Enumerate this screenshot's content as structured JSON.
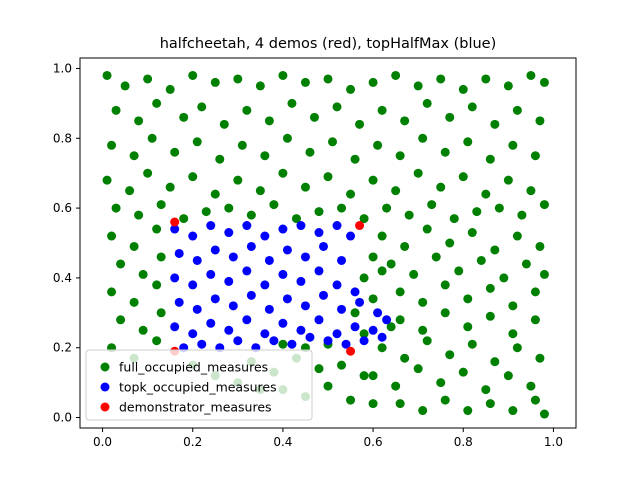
{
  "chart_data": {
    "type": "scatter",
    "title": "halfcheetah, 4 demos (red), topHalfMax (blue)",
    "xlabel": "",
    "ylabel": "",
    "xlim": [
      -0.05,
      1.05
    ],
    "ylim": [
      -0.03,
      1.03
    ],
    "xticks": [
      "0.0",
      "0.2",
      "0.4",
      "0.6",
      "0.8",
      "1.0"
    ],
    "yticks": [
      "0.0",
      "0.2",
      "0.4",
      "0.6",
      "0.8",
      "1.0"
    ],
    "xtick_values": [
      0.0,
      0.2,
      0.4,
      0.6,
      0.8,
      1.0
    ],
    "ytick_values": [
      0.0,
      0.2,
      0.4,
      0.6,
      0.8,
      1.0
    ],
    "grid": false,
    "legend_position": "lower-left",
    "series": [
      {
        "name": "full_occupied_measures",
        "color": "#008000",
        "points": [
          [
            0.01,
            0.98
          ],
          [
            0.05,
            0.95
          ],
          [
            0.1,
            0.97
          ],
          [
            0.15,
            0.94
          ],
          [
            0.2,
            0.98
          ],
          [
            0.25,
            0.96
          ],
          [
            0.3,
            0.97
          ],
          [
            0.35,
            0.95
          ],
          [
            0.4,
            0.98
          ],
          [
            0.45,
            0.96
          ],
          [
            0.5,
            0.97
          ],
          [
            0.55,
            0.94
          ],
          [
            0.6,
            0.96
          ],
          [
            0.65,
            0.98
          ],
          [
            0.7,
            0.95
          ],
          [
            0.75,
            0.97
          ],
          [
            0.8,
            0.94
          ],
          [
            0.85,
            0.97
          ],
          [
            0.9,
            0.95
          ],
          [
            0.95,
            0.98
          ],
          [
            0.98,
            0.96
          ],
          [
            0.03,
            0.88
          ],
          [
            0.08,
            0.85
          ],
          [
            0.12,
            0.9
          ],
          [
            0.18,
            0.86
          ],
          [
            0.22,
            0.89
          ],
          [
            0.27,
            0.84
          ],
          [
            0.32,
            0.88
          ],
          [
            0.37,
            0.85
          ],
          [
            0.42,
            0.9
          ],
          [
            0.47,
            0.86
          ],
          [
            0.52,
            0.89
          ],
          [
            0.57,
            0.84
          ],
          [
            0.62,
            0.88
          ],
          [
            0.67,
            0.85
          ],
          [
            0.72,
            0.9
          ],
          [
            0.77,
            0.86
          ],
          [
            0.82,
            0.89
          ],
          [
            0.87,
            0.84
          ],
          [
            0.92,
            0.88
          ],
          [
            0.97,
            0.85
          ],
          [
            0.02,
            0.78
          ],
          [
            0.07,
            0.75
          ],
          [
            0.11,
            0.8
          ],
          [
            0.16,
            0.76
          ],
          [
            0.21,
            0.79
          ],
          [
            0.26,
            0.74
          ],
          [
            0.31,
            0.78
          ],
          [
            0.36,
            0.75
          ],
          [
            0.41,
            0.8
          ],
          [
            0.46,
            0.76
          ],
          [
            0.51,
            0.79
          ],
          [
            0.56,
            0.74
          ],
          [
            0.61,
            0.78
          ],
          [
            0.66,
            0.75
          ],
          [
            0.71,
            0.8
          ],
          [
            0.76,
            0.76
          ],
          [
            0.81,
            0.79
          ],
          [
            0.86,
            0.74
          ],
          [
            0.91,
            0.78
          ],
          [
            0.96,
            0.75
          ],
          [
            0.01,
            0.68
          ],
          [
            0.06,
            0.65
          ],
          [
            0.1,
            0.7
          ],
          [
            0.15,
            0.66
          ],
          [
            0.2,
            0.69
          ],
          [
            0.25,
            0.64
          ],
          [
            0.3,
            0.68
          ],
          [
            0.35,
            0.65
          ],
          [
            0.4,
            0.7
          ],
          [
            0.45,
            0.66
          ],
          [
            0.5,
            0.69
          ],
          [
            0.55,
            0.64
          ],
          [
            0.6,
            0.68
          ],
          [
            0.65,
            0.65
          ],
          [
            0.7,
            0.7
          ],
          [
            0.75,
            0.66
          ],
          [
            0.8,
            0.69
          ],
          [
            0.85,
            0.64
          ],
          [
            0.9,
            0.68
          ],
          [
            0.95,
            0.65
          ],
          [
            0.03,
            0.6
          ],
          [
            0.08,
            0.58
          ],
          [
            0.13,
            0.61
          ],
          [
            0.18,
            0.57
          ],
          [
            0.23,
            0.59
          ],
          [
            0.28,
            0.6
          ],
          [
            0.33,
            0.58
          ],
          [
            0.38,
            0.61
          ],
          [
            0.43,
            0.57
          ],
          [
            0.48,
            0.59
          ],
          [
            0.53,
            0.6
          ],
          [
            0.58,
            0.57
          ],
          [
            0.63,
            0.6
          ],
          [
            0.68,
            0.58
          ],
          [
            0.73,
            0.61
          ],
          [
            0.78,
            0.57
          ],
          [
            0.83,
            0.59
          ],
          [
            0.88,
            0.6
          ],
          [
            0.93,
            0.58
          ],
          [
            0.98,
            0.61
          ],
          [
            0.02,
            0.52
          ],
          [
            0.07,
            0.49
          ],
          [
            0.12,
            0.54
          ],
          [
            0.04,
            0.44
          ],
          [
            0.09,
            0.41
          ],
          [
            0.13,
            0.46
          ],
          [
            0.02,
            0.36
          ],
          [
            0.07,
            0.33
          ],
          [
            0.12,
            0.38
          ],
          [
            0.04,
            0.28
          ],
          [
            0.09,
            0.25
          ],
          [
            0.13,
            0.3
          ],
          [
            0.02,
            0.2
          ],
          [
            0.07,
            0.17
          ],
          [
            0.12,
            0.22
          ],
          [
            0.62,
            0.52
          ],
          [
            0.67,
            0.49
          ],
          [
            0.72,
            0.54
          ],
          [
            0.77,
            0.5
          ],
          [
            0.82,
            0.53
          ],
          [
            0.87,
            0.48
          ],
          [
            0.92,
            0.52
          ],
          [
            0.97,
            0.49
          ],
          [
            0.64,
            0.44
          ],
          [
            0.69,
            0.41
          ],
          [
            0.74,
            0.46
          ],
          [
            0.79,
            0.42
          ],
          [
            0.84,
            0.45
          ],
          [
            0.89,
            0.4
          ],
          [
            0.94,
            0.44
          ],
          [
            0.98,
            0.41
          ],
          [
            0.66,
            0.36
          ],
          [
            0.71,
            0.33
          ],
          [
            0.76,
            0.38
          ],
          [
            0.81,
            0.34
          ],
          [
            0.86,
            0.37
          ],
          [
            0.91,
            0.32
          ],
          [
            0.96,
            0.36
          ],
          [
            0.66,
            0.28
          ],
          [
            0.71,
            0.25
          ],
          [
            0.76,
            0.3
          ],
          [
            0.81,
            0.26
          ],
          [
            0.86,
            0.29
          ],
          [
            0.91,
            0.24
          ],
          [
            0.96,
            0.28
          ],
          [
            0.62,
            0.2
          ],
          [
            0.67,
            0.17
          ],
          [
            0.72,
            0.22
          ],
          [
            0.77,
            0.18
          ],
          [
            0.82,
            0.21
          ],
          [
            0.87,
            0.16
          ],
          [
            0.92,
            0.2
          ],
          [
            0.97,
            0.17
          ],
          [
            0.6,
            0.12
          ],
          [
            0.65,
            0.09
          ],
          [
            0.7,
            0.14
          ],
          [
            0.75,
            0.1
          ],
          [
            0.8,
            0.13
          ],
          [
            0.85,
            0.08
          ],
          [
            0.9,
            0.12
          ],
          [
            0.95,
            0.09
          ],
          [
            0.66,
            0.04
          ],
          [
            0.71,
            0.02
          ],
          [
            0.76,
            0.05
          ],
          [
            0.81,
            0.02
          ],
          [
            0.86,
            0.04
          ],
          [
            0.91,
            0.02
          ],
          [
            0.96,
            0.05
          ],
          [
            0.98,
            0.01
          ],
          [
            0.33,
            0.16
          ],
          [
            0.38,
            0.13
          ],
          [
            0.43,
            0.17
          ],
          [
            0.48,
            0.14
          ],
          [
            0.53,
            0.15
          ],
          [
            0.58,
            0.12
          ],
          [
            0.4,
            0.08
          ],
          [
            0.45,
            0.06
          ],
          [
            0.5,
            0.09
          ],
          [
            0.55,
            0.05
          ],
          [
            0.2,
            0.15
          ],
          [
            0.25,
            0.12
          ],
          [
            0.3,
            0.1
          ],
          [
            0.35,
            0.08
          ],
          [
            0.6,
            0.04
          ],
          [
            0.56,
            0.3
          ],
          [
            0.6,
            0.34
          ],
          [
            0.58,
            0.4
          ],
          [
            0.6,
            0.46
          ],
          [
            0.62,
            0.42
          ],
          [
            0.64,
            0.26
          ],
          [
            0.58,
            0.24
          ],
          [
            0.5,
            0.21
          ],
          [
            0.45,
            0.2
          ],
          [
            0.4,
            0.21
          ]
        ]
      },
      {
        "name": "topk_occupied_measures",
        "color": "#0000ff",
        "points": [
          [
            0.16,
            0.54
          ],
          [
            0.2,
            0.52
          ],
          [
            0.24,
            0.55
          ],
          [
            0.28,
            0.53
          ],
          [
            0.32,
            0.55
          ],
          [
            0.36,
            0.52
          ],
          [
            0.4,
            0.54
          ],
          [
            0.44,
            0.55
          ],
          [
            0.48,
            0.53
          ],
          [
            0.52,
            0.55
          ],
          [
            0.55,
            0.52
          ],
          [
            0.17,
            0.47
          ],
          [
            0.21,
            0.45
          ],
          [
            0.25,
            0.48
          ],
          [
            0.29,
            0.46
          ],
          [
            0.33,
            0.49
          ],
          [
            0.37,
            0.45
          ],
          [
            0.41,
            0.48
          ],
          [
            0.45,
            0.46
          ],
          [
            0.49,
            0.49
          ],
          [
            0.53,
            0.45
          ],
          [
            0.16,
            0.4
          ],
          [
            0.2,
            0.38
          ],
          [
            0.24,
            0.41
          ],
          [
            0.28,
            0.39
          ],
          [
            0.32,
            0.42
          ],
          [
            0.36,
            0.38
          ],
          [
            0.4,
            0.41
          ],
          [
            0.44,
            0.39
          ],
          [
            0.48,
            0.42
          ],
          [
            0.52,
            0.38
          ],
          [
            0.56,
            0.36
          ],
          [
            0.17,
            0.33
          ],
          [
            0.21,
            0.31
          ],
          [
            0.25,
            0.34
          ],
          [
            0.29,
            0.32
          ],
          [
            0.33,
            0.35
          ],
          [
            0.37,
            0.31
          ],
          [
            0.41,
            0.34
          ],
          [
            0.45,
            0.32
          ],
          [
            0.49,
            0.35
          ],
          [
            0.53,
            0.31
          ],
          [
            0.57,
            0.33
          ],
          [
            0.61,
            0.3
          ],
          [
            0.16,
            0.26
          ],
          [
            0.2,
            0.24
          ],
          [
            0.24,
            0.27
          ],
          [
            0.28,
            0.25
          ],
          [
            0.32,
            0.28
          ],
          [
            0.36,
            0.24
          ],
          [
            0.4,
            0.27
          ],
          [
            0.44,
            0.25
          ],
          [
            0.48,
            0.28
          ],
          [
            0.52,
            0.24
          ],
          [
            0.56,
            0.26
          ],
          [
            0.6,
            0.25
          ],
          [
            0.63,
            0.28
          ],
          [
            0.18,
            0.2
          ],
          [
            0.22,
            0.21
          ],
          [
            0.26,
            0.2
          ],
          [
            0.3,
            0.22
          ],
          [
            0.34,
            0.2
          ],
          [
            0.38,
            0.22
          ],
          [
            0.42,
            0.21
          ],
          [
            0.46,
            0.23
          ],
          [
            0.5,
            0.22
          ],
          [
            0.54,
            0.21
          ],
          [
            0.58,
            0.22
          ],
          [
            0.62,
            0.23
          ]
        ]
      },
      {
        "name": "demonstrator_measures",
        "color": "#ff0000",
        "points": [
          [
            0.16,
            0.56
          ],
          [
            0.57,
            0.55
          ],
          [
            0.16,
            0.19
          ],
          [
            0.55,
            0.19
          ]
        ]
      }
    ]
  }
}
